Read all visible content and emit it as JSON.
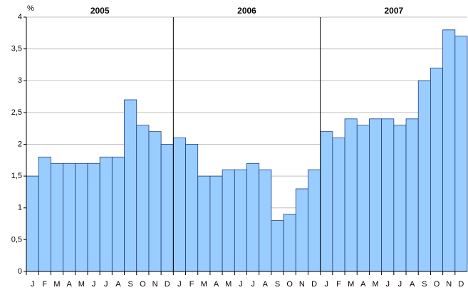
{
  "chart_data": {
    "type": "bar",
    "y_axis_label": "%",
    "year_labels": [
      "2005",
      "2006",
      "2007"
    ],
    "categories": [
      "J",
      "F",
      "M",
      "A",
      "M",
      "J",
      "J",
      "A",
      "S",
      "O",
      "N",
      "D",
      "J",
      "F",
      "M",
      "A",
      "M",
      "J",
      "J",
      "A",
      "S",
      "O",
      "N",
      "D",
      "J",
      "F",
      "M",
      "A",
      "M",
      "J",
      "J",
      "A",
      "S",
      "O",
      "N",
      "D"
    ],
    "values": [
      1.5,
      1.8,
      1.7,
      1.7,
      1.7,
      1.7,
      1.8,
      1.8,
      2.7,
      2.3,
      2.2,
      2.0,
      2.1,
      2.0,
      1.5,
      1.5,
      1.6,
      1.6,
      1.7,
      1.6,
      0.8,
      0.9,
      1.3,
      1.6,
      2.2,
      2.1,
      2.4,
      2.3,
      2.4,
      2.4,
      2.3,
      2.4,
      3.0,
      3.2,
      3.8,
      3.7
    ],
    "color": "#99ccff",
    "ylim": [
      0,
      4
    ],
    "yticks": [
      0,
      {
        "value": 0.5,
        "label": "0,5"
      },
      1,
      {
        "value": 1.5,
        "label": "1,5"
      },
      2,
      {
        "value": 2.5,
        "label": "2,5"
      },
      3,
      {
        "value": 3.5,
        "label": "3,5"
      },
      4
    ],
    "grid": true
  }
}
